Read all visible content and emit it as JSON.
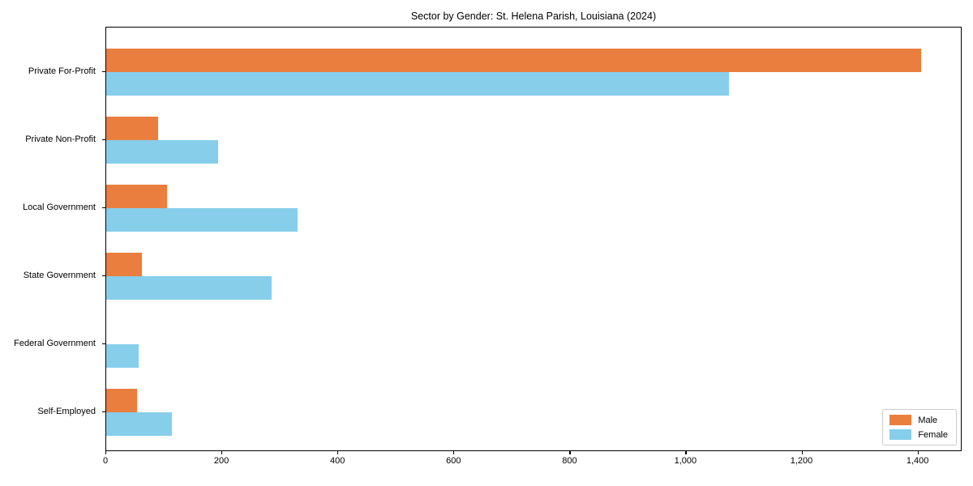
{
  "chart_data": {
    "type": "bar",
    "orientation": "horizontal",
    "title": "Sector by Gender: St. Helena Parish, Louisiana (2024)",
    "categories": [
      "Private For-Profit",
      "Private Non-Profit",
      "Local Government",
      "State Government",
      "Federal Government",
      "Self-Employed"
    ],
    "series": [
      {
        "name": "Male",
        "color": "#e97e3e",
        "values": [
          1405,
          90,
          105,
          62,
          0,
          53
        ]
      },
      {
        "name": "Female",
        "color": "#87ceeb",
        "values": [
          1073,
          193,
          330,
          285,
          56,
          113
        ]
      }
    ],
    "xlabel": "",
    "ylabel": "",
    "xlim": [
      0,
      1476
    ],
    "xticks": [
      0,
      200,
      400,
      600,
      800,
      1000,
      1200,
      1400
    ],
    "xtick_labels": [
      "0",
      "200",
      "400",
      "600",
      "800",
      "1,000",
      "1,200",
      "1,400"
    ],
    "grid": false,
    "legend": {
      "position": "lower right",
      "entries": [
        {
          "label": "Male",
          "color": "#e97e3e"
        },
        {
          "label": "Female",
          "color": "#87ceeb"
        }
      ]
    }
  }
}
